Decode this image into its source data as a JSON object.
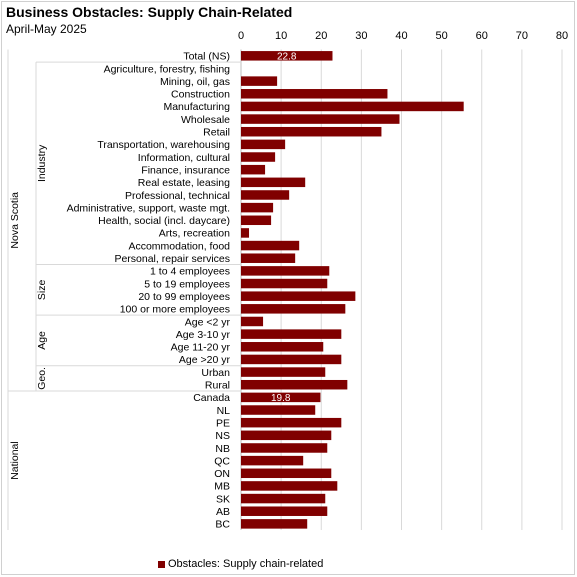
{
  "colors": {
    "bar": "#800000",
    "grid": "#d9d9d9",
    "axis": "#bfbfbf",
    "bar_label": "#ffffff"
  },
  "chart_data": {
    "type": "bar",
    "orientation": "horizontal",
    "title": "Business Obstacles: Supply Chain-Related",
    "subtitle": "April-May 2025",
    "xlim": [
      0,
      80
    ],
    "xticks": [
      0,
      10,
      20,
      30,
      40,
      50,
      60,
      70,
      80
    ],
    "grid": true,
    "legend_position": "bottom",
    "series": [
      {
        "name": "Obstacles: Supply chain-related",
        "values": [
          22.8,
          0,
          9,
          36.5,
          55.5,
          39.5,
          35,
          11,
          8.5,
          6,
          16,
          12,
          8,
          7.5,
          2,
          14.5,
          13.5,
          22,
          21.5,
          28.5,
          26,
          5.5,
          25,
          20.5,
          25,
          21,
          26.5,
          19.8,
          18.5,
          25,
          22.5,
          21.5,
          15.5,
          22.5,
          24,
          21,
          21.5,
          16.5
        ]
      }
    ],
    "categories": [
      "Total (NS)",
      "Agriculture, forestry, fishing",
      "Mining, oil, gas",
      "Construction",
      "Manufacturing",
      "Wholesale",
      "Retail",
      "Transportation, warehousing",
      "Information, cultural",
      "Finance, insurance",
      "Real estate, leasing",
      "Professional, technical",
      "Administrative, support, waste mgt.",
      "Health, social (incl. daycare)",
      "Arts, recreation",
      "Accommodation, food",
      "Personal, repair services",
      "1 to 4 employees",
      "5 to 19 employees",
      "20 to 99 employees",
      "100 or more employees",
      "Age <2 yr",
      "Age 3-10 yr",
      "Age 11-20 yr",
      "Age >20 yr",
      "Urban",
      "Rural",
      "Canada",
      "NL",
      "PE",
      "NS",
      "NB",
      "QC",
      "ON",
      "MB",
      "SK",
      "AB",
      "BC"
    ],
    "data_labels": {
      "0": "22.8",
      "27": "19.8"
    },
    "groups": [
      {
        "label": "Industry",
        "start": 1,
        "end": 16
      },
      {
        "label": "Size",
        "start": 17,
        "end": 20
      },
      {
        "label": "Age",
        "start": 21,
        "end": 24
      },
      {
        "label": "Geo.",
        "start": 25,
        "end": 26
      }
    ],
    "outer_groups": [
      {
        "label": "Nova Scotia",
        "start": 0,
        "end": 26
      },
      {
        "label": "National",
        "start": 27,
        "end": 37
      }
    ]
  }
}
